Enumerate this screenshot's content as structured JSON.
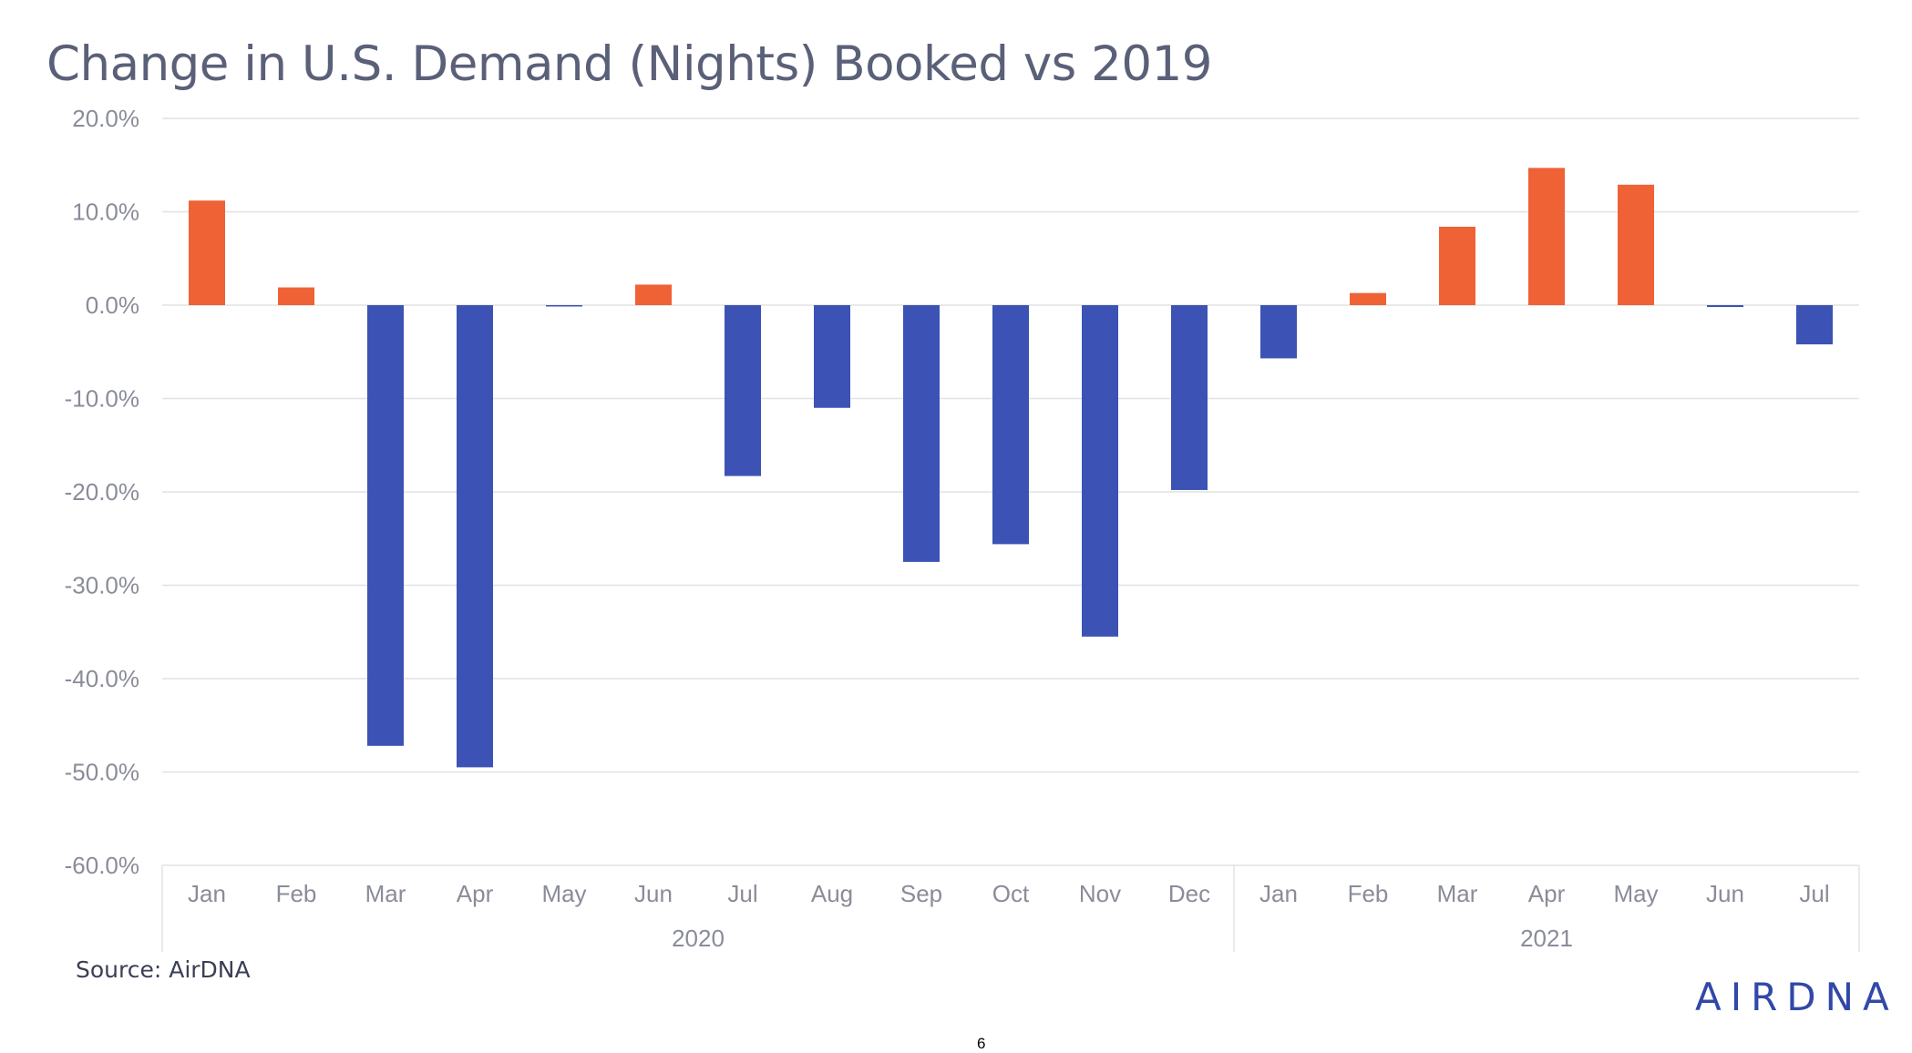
{
  "chart_data": {
    "type": "bar",
    "title": "Change in U.S. Demand (Nights) Booked vs 2019",
    "categories": [
      "Jan",
      "Feb",
      "Mar",
      "Apr",
      "May",
      "Jun",
      "Jul",
      "Aug",
      "Sep",
      "Oct",
      "Nov",
      "Dec",
      "Jan",
      "Feb",
      "Mar",
      "Apr",
      "May",
      "Jun",
      "Jul"
    ],
    "year_groups": [
      {
        "label": "2020",
        "start": 0,
        "end": 11
      },
      {
        "label": "2021",
        "start": 12,
        "end": 18
      }
    ],
    "values": [
      11.2,
      1.9,
      -47.2,
      -49.5,
      -0.1,
      2.2,
      -18.3,
      -11.0,
      -27.5,
      -25.6,
      -35.5,
      -19.8,
      -5.7,
      1.3,
      8.4,
      14.7,
      12.9,
      -0.2,
      -4.2
    ],
    "ylim": [
      -60,
      20
    ],
    "yticks": [
      20,
      10,
      0,
      -10,
      -20,
      -30,
      -40,
      -50,
      -60
    ],
    "ytick_labels": [
      "20.0%",
      "10.0%",
      "0.0%",
      "-10.0%",
      "-20.0%",
      "-30.0%",
      "-40.0%",
      "-50.0%",
      "-60.0%"
    ],
    "colors": {
      "positive": "#ef6236",
      "negative": "#3c53b5",
      "grid": "#e2e2e2",
      "axis_text": "#8a8c99"
    },
    "xlabel": "",
    "ylabel": "",
    "grid": true
  },
  "footer": {
    "source": "Source: AirDNA",
    "logo": "AIRDNA",
    "page_number": "6"
  }
}
